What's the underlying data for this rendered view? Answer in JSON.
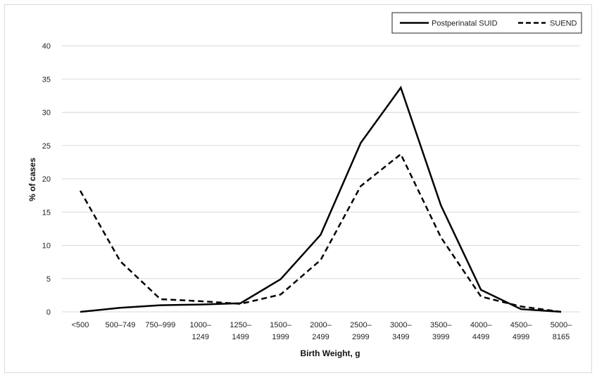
{
  "chart_data": {
    "type": "line",
    "title": "",
    "xlabel": "Birth Weight, g",
    "ylabel": "% of cases",
    "ylim": [
      0,
      40
    ],
    "yticks": [
      "0",
      "5",
      "10",
      "15",
      "20",
      "25",
      "30",
      "35",
      "40"
    ],
    "grid": "horizontal",
    "legend_position": "top-right",
    "categories": [
      [
        "<500"
      ],
      [
        "500–749"
      ],
      [
        "750–999"
      ],
      [
        "1000–",
        "1249"
      ],
      [
        "1250–",
        "1499"
      ],
      [
        "1500–",
        "1999"
      ],
      [
        "2000–",
        "2499"
      ],
      [
        "2500–",
        "2999"
      ],
      [
        "3000–",
        "3499"
      ],
      [
        "3500–",
        "3999"
      ],
      [
        "4000–",
        "4499"
      ],
      [
        "4500–",
        "4999"
      ],
      [
        "5000–",
        "8165"
      ]
    ],
    "series": [
      {
        "name": "Postperinatal SUID",
        "style": "solid",
        "color": "#000000",
        "values": [
          0.0,
          0.6,
          1.0,
          1.1,
          1.3,
          4.9,
          11.6,
          25.4,
          33.7,
          16.0,
          3.3,
          0.4,
          0.0
        ]
      },
      {
        "name": "SUEND",
        "style": "dashed",
        "color": "#000000",
        "values": [
          18.2,
          7.6,
          1.9,
          1.6,
          1.2,
          2.6,
          7.8,
          18.9,
          23.7,
          11.2,
          2.3,
          0.8,
          0.0
        ]
      }
    ]
  }
}
